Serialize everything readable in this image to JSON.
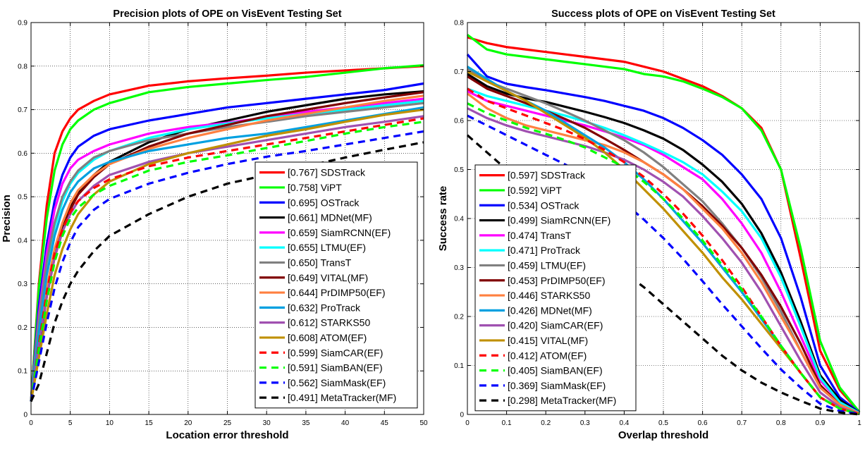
{
  "chart_data": [
    {
      "type": "line",
      "title": "Precision plots of OPE on VisEvent Testing Set",
      "xlabel": "Location error threshold",
      "ylabel": "Precision",
      "xlim": [
        0,
        50
      ],
      "ylim": [
        0,
        0.9
      ],
      "xticks": [
        0,
        5,
        10,
        15,
        20,
        25,
        30,
        35,
        40,
        45,
        50
      ],
      "yticks": [
        0,
        0.1,
        0.2,
        0.3,
        0.4,
        0.5,
        0.6,
        0.7,
        0.8,
        0.9
      ],
      "grid": true,
      "legend_position": "bottom-right",
      "x": [
        0,
        1,
        2,
        3,
        4,
        5,
        6,
        8,
        10,
        15,
        20,
        25,
        30,
        35,
        40,
        45,
        50
      ],
      "series": [
        {
          "legend": "[0.767] SDSTrack",
          "color": "#ff0000",
          "dash": false,
          "values": [
            0.03,
            0.3,
            0.48,
            0.6,
            0.65,
            0.68,
            0.7,
            0.72,
            0.735,
            0.755,
            0.765,
            0.772,
            0.778,
            0.785,
            0.79,
            0.795,
            0.8
          ]
        },
        {
          "legend": "[0.758] ViPT",
          "color": "#00ff00",
          "dash": false,
          "values": [
            0.03,
            0.29,
            0.45,
            0.56,
            0.62,
            0.655,
            0.675,
            0.7,
            0.715,
            0.74,
            0.752,
            0.76,
            0.768,
            0.775,
            0.785,
            0.795,
            0.802
          ]
        },
        {
          "legend": "[0.695] OSTrack",
          "color": "#0000ff",
          "dash": false,
          "values": [
            0.03,
            0.25,
            0.39,
            0.49,
            0.55,
            0.59,
            0.615,
            0.64,
            0.655,
            0.675,
            0.69,
            0.705,
            0.715,
            0.725,
            0.735,
            0.745,
            0.76
          ]
        },
        {
          "legend": "[0.661] MDNet(MF)",
          "color": "#000000",
          "dash": false,
          "values": [
            0.03,
            0.16,
            0.28,
            0.37,
            0.43,
            0.48,
            0.51,
            0.55,
            0.58,
            0.625,
            0.655,
            0.675,
            0.695,
            0.71,
            0.725,
            0.735,
            0.742
          ]
        },
        {
          "legend": "[0.659] SiamRCNN(EF)",
          "color": "#ff00ff",
          "dash": false,
          "values": [
            0.03,
            0.23,
            0.37,
            0.47,
            0.53,
            0.565,
            0.585,
            0.605,
            0.62,
            0.645,
            0.66,
            0.67,
            0.682,
            0.695,
            0.705,
            0.715,
            0.725
          ]
        },
        {
          "legend": "[0.655] LTMU(EF)",
          "color": "#00ffff",
          "dash": false,
          "values": [
            0.03,
            0.2,
            0.33,
            0.43,
            0.49,
            0.53,
            0.555,
            0.585,
            0.605,
            0.635,
            0.655,
            0.668,
            0.68,
            0.69,
            0.7,
            0.71,
            0.72
          ]
        },
        {
          "legend": "[0.650] TransT",
          "color": "#808080",
          "dash": false,
          "values": [
            0.03,
            0.22,
            0.35,
            0.44,
            0.5,
            0.535,
            0.56,
            0.59,
            0.605,
            0.63,
            0.645,
            0.66,
            0.672,
            0.685,
            0.695,
            0.705,
            0.715
          ]
        },
        {
          "legend": "[0.649] VITAL(MF)",
          "color": "#800000",
          "dash": false,
          "values": [
            0.03,
            0.15,
            0.27,
            0.36,
            0.42,
            0.47,
            0.505,
            0.545,
            0.575,
            0.615,
            0.645,
            0.665,
            0.685,
            0.7,
            0.715,
            0.728,
            0.74
          ]
        },
        {
          "legend": "[0.644] PrDIMP50(EF)",
          "color": "#ff8040",
          "dash": false,
          "values": [
            0.03,
            0.17,
            0.29,
            0.38,
            0.44,
            0.485,
            0.515,
            0.55,
            0.575,
            0.61,
            0.635,
            0.655,
            0.675,
            0.69,
            0.705,
            0.72,
            0.732
          ]
        },
        {
          "legend": "[0.632] ProTrack",
          "color": "#00a0e0",
          "dash": false,
          "values": [
            0.03,
            0.19,
            0.32,
            0.41,
            0.47,
            0.51,
            0.535,
            0.565,
            0.58,
            0.605,
            0.62,
            0.635,
            0.645,
            0.66,
            0.675,
            0.69,
            0.705
          ]
        },
        {
          "legend": "[0.612] STARKS50",
          "color": "#a050b0",
          "dash": false,
          "values": [
            0.03,
            0.16,
            0.27,
            0.36,
            0.42,
            0.46,
            0.49,
            0.525,
            0.55,
            0.58,
            0.6,
            0.615,
            0.63,
            0.645,
            0.66,
            0.672,
            0.685
          ]
        },
        {
          "legend": "[0.608] ATOM(EF)",
          "color": "#c09000",
          "dash": false,
          "values": [
            0.03,
            0.13,
            0.23,
            0.32,
            0.38,
            0.425,
            0.46,
            0.505,
            0.535,
            0.575,
            0.6,
            0.62,
            0.64,
            0.655,
            0.672,
            0.688,
            0.7
          ]
        },
        {
          "legend": "[0.599] SiamCAR(EF)",
          "color": "#ff0000",
          "dash": true,
          "values": [
            0.03,
            0.16,
            0.28,
            0.37,
            0.425,
            0.465,
            0.49,
            0.52,
            0.54,
            0.57,
            0.59,
            0.605,
            0.62,
            0.635,
            0.65,
            0.665,
            0.68
          ]
        },
        {
          "legend": "[0.591] SiamBAN(EF)",
          "color": "#00ff00",
          "dash": true,
          "values": [
            0.03,
            0.15,
            0.26,
            0.35,
            0.41,
            0.45,
            0.475,
            0.505,
            0.525,
            0.56,
            0.58,
            0.595,
            0.612,
            0.628,
            0.645,
            0.66,
            0.672
          ]
        },
        {
          "legend": "[0.562] SiamMask(EF)",
          "color": "#0000ff",
          "dash": true,
          "values": [
            0.03,
            0.12,
            0.21,
            0.29,
            0.35,
            0.395,
            0.43,
            0.47,
            0.495,
            0.53,
            0.555,
            0.575,
            0.592,
            0.605,
            0.62,
            0.635,
            0.65
          ]
        },
        {
          "legend": "[0.491] MetaTracker(MF)",
          "color": "#000000",
          "dash": true,
          "values": [
            0.03,
            0.07,
            0.14,
            0.21,
            0.26,
            0.3,
            0.33,
            0.375,
            0.41,
            0.46,
            0.5,
            0.53,
            0.55,
            0.57,
            0.59,
            0.608,
            0.625
          ]
        }
      ]
    },
    {
      "type": "line",
      "title": "Success plots of OPE on VisEvent Testing Set",
      "xlabel": "Overlap threshold",
      "ylabel": "Success rate",
      "xlim": [
        0,
        1
      ],
      "ylim": [
        0,
        0.8
      ],
      "xticks": [
        0,
        0.1,
        0.2,
        0.3,
        0.4,
        0.5,
        0.6,
        0.7,
        0.8,
        0.9,
        1
      ],
      "yticks": [
        0,
        0.1,
        0.2,
        0.3,
        0.4,
        0.5,
        0.6,
        0.7,
        0.8
      ],
      "grid": true,
      "legend_position": "bottom-left",
      "x": [
        0,
        0.05,
        0.1,
        0.15,
        0.2,
        0.25,
        0.3,
        0.35,
        0.4,
        0.45,
        0.5,
        0.55,
        0.6,
        0.65,
        0.7,
        0.75,
        0.8,
        0.85,
        0.9,
        0.95,
        1
      ],
      "series": [
        {
          "legend": "[0.597] SDSTrack",
          "color": "#ff0000",
          "dash": false,
          "values": [
            0.77,
            0.758,
            0.75,
            0.745,
            0.74,
            0.735,
            0.73,
            0.725,
            0.72,
            0.71,
            0.7,
            0.685,
            0.67,
            0.65,
            0.625,
            0.585,
            0.5,
            0.32,
            0.13,
            0.05,
            0.005
          ]
        },
        {
          "legend": "[0.592] ViPT",
          "color": "#00ff00",
          "dash": false,
          "values": [
            0.775,
            0.745,
            0.735,
            0.73,
            0.725,
            0.72,
            0.715,
            0.71,
            0.705,
            0.695,
            0.69,
            0.68,
            0.665,
            0.648,
            0.625,
            0.58,
            0.5,
            0.34,
            0.15,
            0.055,
            0.005
          ]
        },
        {
          "legend": "[0.534] OSTrack",
          "color": "#0000ff",
          "dash": false,
          "values": [
            0.735,
            0.69,
            0.675,
            0.668,
            0.662,
            0.655,
            0.648,
            0.64,
            0.63,
            0.62,
            0.605,
            0.585,
            0.56,
            0.53,
            0.49,
            0.44,
            0.36,
            0.24,
            0.1,
            0.035,
            0.004
          ]
        },
        {
          "legend": "[0.499] SiamRCNN(EF)",
          "color": "#000000",
          "dash": false,
          "values": [
            0.695,
            0.67,
            0.655,
            0.645,
            0.638,
            0.628,
            0.618,
            0.607,
            0.595,
            0.58,
            0.563,
            0.54,
            0.51,
            0.475,
            0.43,
            0.37,
            0.29,
            0.19,
            0.08,
            0.03,
            0.003
          ]
        },
        {
          "legend": "[0.474] TransT",
          "color": "#ff00ff",
          "dash": false,
          "values": [
            0.66,
            0.64,
            0.63,
            0.62,
            0.61,
            0.6,
            0.59,
            0.578,
            0.565,
            0.55,
            0.53,
            0.505,
            0.48,
            0.44,
            0.39,
            0.33,
            0.25,
            0.16,
            0.07,
            0.025,
            0.003
          ]
        },
        {
          "legend": "[0.471] ProTrack",
          "color": "#00ffff",
          "dash": false,
          "values": [
            0.665,
            0.65,
            0.64,
            0.63,
            0.62,
            0.61,
            0.598,
            0.585,
            0.57,
            0.553,
            0.535,
            0.515,
            0.49,
            0.455,
            0.415,
            0.36,
            0.28,
            0.18,
            0.075,
            0.025,
            0.003
          ]
        },
        {
          "legend": "[0.459] LTMU(EF)",
          "color": "#808080",
          "dash": false,
          "values": [
            0.705,
            0.68,
            0.665,
            0.65,
            0.635,
            0.618,
            0.6,
            0.58,
            0.56,
            0.535,
            0.505,
            0.47,
            0.435,
            0.39,
            0.34,
            0.28,
            0.21,
            0.13,
            0.055,
            0.02,
            0.002
          ]
        },
        {
          "legend": "[0.453] PrDIMP50(EF)",
          "color": "#800000",
          "dash": false,
          "values": [
            0.69,
            0.665,
            0.65,
            0.635,
            0.62,
            0.603,
            0.585,
            0.563,
            0.54,
            0.515,
            0.49,
            0.46,
            0.425,
            0.385,
            0.34,
            0.285,
            0.22,
            0.145,
            0.06,
            0.02,
            0.002
          ]
        },
        {
          "legend": "[0.446] STARKS50",
          "color": "#ff8040",
          "dash": false,
          "values": [
            0.655,
            0.625,
            0.605,
            0.59,
            0.58,
            0.57,
            0.56,
            0.55,
            0.535,
            0.515,
            0.49,
            0.46,
            0.42,
            0.38,
            0.33,
            0.27,
            0.2,
            0.13,
            0.055,
            0.02,
            0.002
          ]
        },
        {
          "legend": "[0.426] MDNet(MF)",
          "color": "#00a0e0",
          "dash": false,
          "values": [
            0.71,
            0.685,
            0.66,
            0.64,
            0.62,
            0.595,
            0.57,
            0.545,
            0.515,
            0.48,
            0.44,
            0.395,
            0.35,
            0.3,
            0.25,
            0.195,
            0.14,
            0.085,
            0.035,
            0.012,
            0.001
          ]
        },
        {
          "legend": "[0.420] SiamCAR(EF)",
          "color": "#a050b0",
          "dash": false,
          "values": [
            0.625,
            0.605,
            0.59,
            0.578,
            0.568,
            0.558,
            0.548,
            0.535,
            0.52,
            0.5,
            0.475,
            0.445,
            0.405,
            0.36,
            0.31,
            0.25,
            0.18,
            0.11,
            0.045,
            0.015,
            0.001
          ]
        },
        {
          "legend": "[0.415] VITAL(MF)",
          "color": "#c09000",
          "dash": false,
          "values": [
            0.7,
            0.68,
            0.66,
            0.64,
            0.615,
            0.59,
            0.565,
            0.535,
            0.5,
            0.46,
            0.42,
            0.375,
            0.33,
            0.28,
            0.235,
            0.185,
            0.135,
            0.085,
            0.035,
            0.012,
            0.001
          ]
        },
        {
          "legend": "[0.412] ATOM(EF)",
          "color": "#ff0000",
          "dash": true,
          "values": [
            0.665,
            0.64,
            0.625,
            0.61,
            0.595,
            0.58,
            0.562,
            0.54,
            0.515,
            0.485,
            0.45,
            0.41,
            0.365,
            0.315,
            0.26,
            0.2,
            0.14,
            0.085,
            0.035,
            0.012,
            0.001
          ]
        },
        {
          "legend": "[0.405] SiamBAN(EF)",
          "color": "#00ff00",
          "dash": true,
          "values": [
            0.635,
            0.615,
            0.6,
            0.585,
            0.573,
            0.56,
            0.545,
            0.525,
            0.505,
            0.475,
            0.44,
            0.4,
            0.355,
            0.305,
            0.255,
            0.2,
            0.14,
            0.085,
            0.035,
            0.012,
            0.001
          ]
        },
        {
          "legend": "[0.369] SiamMask(EF)",
          "color": "#0000ff",
          "dash": true,
          "values": [
            0.61,
            0.59,
            0.57,
            0.55,
            0.53,
            0.51,
            0.488,
            0.462,
            0.432,
            0.398,
            0.36,
            0.318,
            0.272,
            0.225,
            0.18,
            0.135,
            0.092,
            0.055,
            0.022,
            0.007,
            0.001
          ]
        },
        {
          "legend": "[0.298] MetaTracker(MF)",
          "color": "#000000",
          "dash": true,
          "values": [
            0.57,
            0.535,
            0.5,
            0.465,
            0.43,
            0.395,
            0.36,
            0.325,
            0.29,
            0.26,
            0.225,
            0.19,
            0.155,
            0.12,
            0.09,
            0.065,
            0.045,
            0.028,
            0.012,
            0.004,
            0.0
          ]
        }
      ]
    }
  ]
}
